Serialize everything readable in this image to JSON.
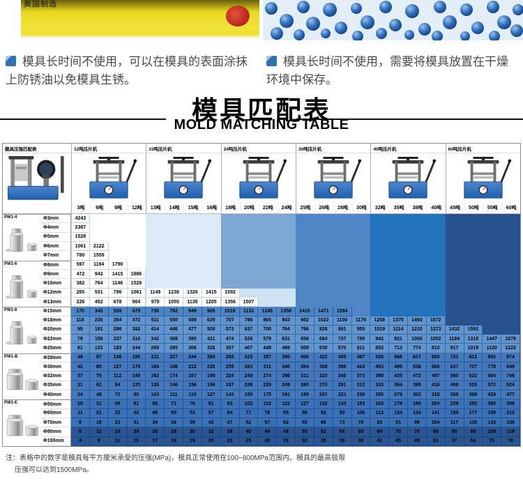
{
  "top": {
    "left_photo_label": "美国制造",
    "bullets": {
      "left": "模具长时间不使用，可以在模具的表面涂抹上防锈油以免模具生锈。",
      "right": "模具长时间不使用，需要将模具放置在干燥环境中保存。"
    }
  },
  "title": {
    "zh": "模具匹配表",
    "en": "MOLD MATCHING TABLE"
  },
  "chart_data": {
    "type": "table",
    "corner_label": "模具压强匹配表",
    "unit_ton": "吨",
    "dia_prefix": "Φ",
    "dia_suffix": "mm",
    "machines": [
      {
        "label": "12吨压片机",
        "tons": [
          3,
          6,
          9,
          12
        ]
      },
      {
        "label": "15吨压片机",
        "tons": [
          13,
          14,
          15,
          16
        ]
      },
      {
        "label": "24吨压片机",
        "tons": [
          18,
          20,
          22,
          24
        ]
      },
      {
        "label": "30吨压片机",
        "tons": [
          25,
          26,
          28,
          30
        ]
      },
      {
        "label": "40吨压片机",
        "tons": [
          32,
          35,
          38,
          40
        ]
      },
      {
        "label": "60吨压片机",
        "tons": [
          45,
          50,
          55,
          60
        ]
      }
    ],
    "groups": [
      {
        "model": "PW1-4",
        "mold": "tall",
        "diameters": [
          3,
          4,
          5,
          6,
          7
        ]
      },
      {
        "model": "PW1-6",
        "mold": "tall",
        "diameters": [
          8,
          9,
          10,
          12,
          13
        ]
      },
      {
        "model": "PW1-8",
        "mold": "tall",
        "diameters": [
          15,
          18,
          20,
          22,
          25
        ]
      },
      {
        "model": "PW1-B",
        "mold": "squat",
        "diameters": [
          28,
          30,
          32,
          35,
          40
        ]
      },
      {
        "model": "PW1-E",
        "mold": "squat",
        "diameters": [
          50,
          60,
          70,
          80,
          100
        ]
      }
    ],
    "formula": "P(MPa) = round( T × 10000 N ÷ (π × d² / 4) ), T in tons, d in mm",
    "value_overrides": {
      "3|3": 4243
    },
    "visibility": {
      "block1_always_first_col": true,
      "block1_max_mpa": 2200,
      "other_blocks_max_mpa": 1600
    },
    "colors": {
      "tint_empty": [
        "#ffffff",
        "#dce9f6",
        "#7fa7d5",
        "#4e86c6",
        "#2273bc",
        "#27508f"
      ],
      "tint_partial": [
        "#ffffff",
        "#dce9f6",
        "#cfe2f3",
        "#4e86c6",
        "#2273bc",
        "#27508f"
      ],
      "row_fill": [
        "#ffffff",
        "#ffffff",
        "#ffffff",
        "#ffffff",
        "#ffffff",
        "#ffffff",
        "#ffffff",
        "#ffffff",
        "#ffffff",
        "#ffffff",
        "#4d84c4",
        "#6094ce",
        "#6094ce",
        "#6094ce",
        "#6094ce",
        "#4478bd",
        "#4478bd",
        "#4478bd",
        "#4478bd",
        "#4478bd",
        "#3a70b6",
        "#3a70b6",
        "#3a70b6",
        "#2a5593",
        "#2a5593"
      ],
      "grid_light": "#c2d4e7",
      "grid_dark": "rgba(13,52,110,0.45)"
    }
  },
  "note": {
    "line1": "注：表格中的数字是模具每平方厘米承受的压强(MPa)，模具正常使用在100~800MPa范围内。模具的最高极限",
    "line2": "压强可以达到1500MPa。"
  }
}
